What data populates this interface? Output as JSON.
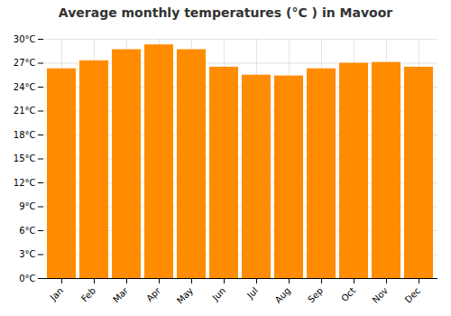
{
  "chart_data": {
    "type": "bar",
    "title": "Average monthly temperatures (°C ) in Mavoor",
    "categories": [
      "Jan",
      "Feb",
      "Mar",
      "Apr",
      "May",
      "Jun",
      "Jul",
      "Aug",
      "Sep",
      "Oct",
      "Nov",
      "Dec"
    ],
    "values": [
      26.3,
      27.3,
      28.7,
      29.3,
      28.7,
      26.5,
      25.5,
      25.4,
      26.3,
      27.0,
      27.1,
      26.5
    ],
    "color": "#FF8C00",
    "ylim": [
      0,
      30
    ],
    "yticks": [
      {
        "value": 0,
        "label": "0°C"
      },
      {
        "value": 3,
        "label": "3°C"
      },
      {
        "value": 6,
        "label": "6°C"
      },
      {
        "value": 9,
        "label": "9°C"
      },
      {
        "value": 12,
        "label": "12°C"
      },
      {
        "value": 15,
        "label": "15°C"
      },
      {
        "value": 18,
        "label": "18°C"
      },
      {
        "value": 21,
        "label": "21°C"
      },
      {
        "value": 24,
        "label": "24°C"
      },
      {
        "value": 27,
        "label": "27°C"
      },
      {
        "value": 30,
        "label": "30°C"
      }
    ],
    "grid": true
  }
}
